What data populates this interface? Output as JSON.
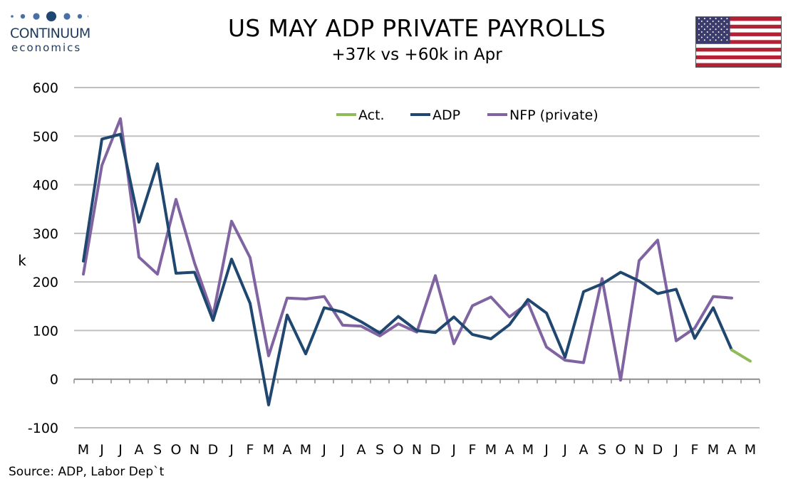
{
  "header": {
    "logo_main": "CONTINUUM",
    "logo_sub": "economics",
    "title": "US MAY ADP PRIVATE PAYROLLS",
    "subtitle": "+37k vs +60k in Apr",
    "flag_icon": "us-flag-icon"
  },
  "footer": {
    "source": "Source: ADP, Labor Dep`t"
  },
  "colors": {
    "act": "#8fbb5a",
    "adp": "#1f4770",
    "nfp": "#8064a2",
    "grid": "#bfbfbf",
    "logo": "#1f3a5c"
  },
  "chart_data": {
    "type": "line",
    "title": "US MAY ADP PRIVATE PAYROLLS",
    "subtitle": "+37k vs +60k in Apr",
    "xlabel": "",
    "ylabel": "k",
    "ylim": [
      -100,
      600
    ],
    "yticks": [
      -100,
      0,
      100,
      200,
      300,
      400,
      500,
      600
    ],
    "grid": true,
    "legend_position": "top-center",
    "categories": [
      "M",
      "J",
      "J",
      "A",
      "S",
      "O",
      "N",
      "D",
      "J",
      "F",
      "M",
      "A",
      "M",
      "J",
      "J",
      "A",
      "S",
      "O",
      "N",
      "D",
      "J",
      "F",
      "M",
      "A",
      "M",
      "J",
      "J",
      "A",
      "S",
      "O",
      "N",
      "D",
      "J",
      "F",
      "M",
      "A",
      "M"
    ],
    "series": [
      {
        "name": "Act.",
        "color": "#8fbb5a",
        "values": [
          null,
          null,
          null,
          null,
          null,
          null,
          null,
          null,
          null,
          null,
          null,
          null,
          null,
          null,
          null,
          null,
          null,
          null,
          null,
          null,
          null,
          null,
          null,
          null,
          null,
          null,
          null,
          null,
          null,
          null,
          null,
          null,
          null,
          null,
          null,
          60,
          37
        ]
      },
      {
        "name": "ADP",
        "color": "#1f4770",
        "values": [
          243,
          494,
          504,
          323,
          443,
          218,
          220,
          121,
          247,
          156,
          -53,
          132,
          52,
          147,
          138,
          118,
          95,
          129,
          100,
          96,
          128,
          92,
          83,
          112,
          164,
          136,
          45,
          180,
          196,
          220,
          202,
          176,
          185,
          84,
          147,
          60,
          null
        ]
      },
      {
        "name": "NFP (private)",
        "color": "#8064a2",
        "values": [
          216,
          440,
          536,
          251,
          216,
          370,
          239,
          131,
          325,
          250,
          48,
          167,
          165,
          170,
          111,
          109,
          89,
          114,
          97,
          213,
          73,
          151,
          169,
          128,
          157,
          66,
          39,
          34,
          207,
          -2,
          244,
          286,
          79,
          105,
          170,
          167,
          null
        ]
      }
    ]
  }
}
